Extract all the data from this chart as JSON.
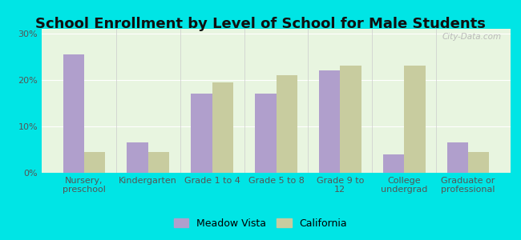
{
  "title": "School Enrollment by Level of School for Male Students",
  "categories": [
    "Nursery,\npreschool",
    "Kindergarten",
    "Grade 1 to 4",
    "Grade 5 to 8",
    "Grade 9 to\n12",
    "College\nundergrad",
    "Graduate or\nprofessional"
  ],
  "meadow_vista": [
    25.5,
    6.5,
    17.0,
    17.0,
    22.0,
    4.0,
    6.5
  ],
  "california": [
    4.5,
    4.5,
    19.5,
    21.0,
    23.0,
    23.0,
    4.5
  ],
  "meadow_color": "#b09fcc",
  "california_color": "#c8cc9f",
  "background_outer": "#00e5e5",
  "background_inner": "#e8f5e0",
  "ylim": [
    0,
    31
  ],
  "yticks": [
    0,
    10,
    20,
    30
  ],
  "yticklabels": [
    "0%",
    "10%",
    "20%",
    "30%"
  ],
  "legend_meadow": "Meadow Vista",
  "legend_california": "California",
  "title_fontsize": 13,
  "tick_fontsize": 8,
  "bar_width": 0.33
}
